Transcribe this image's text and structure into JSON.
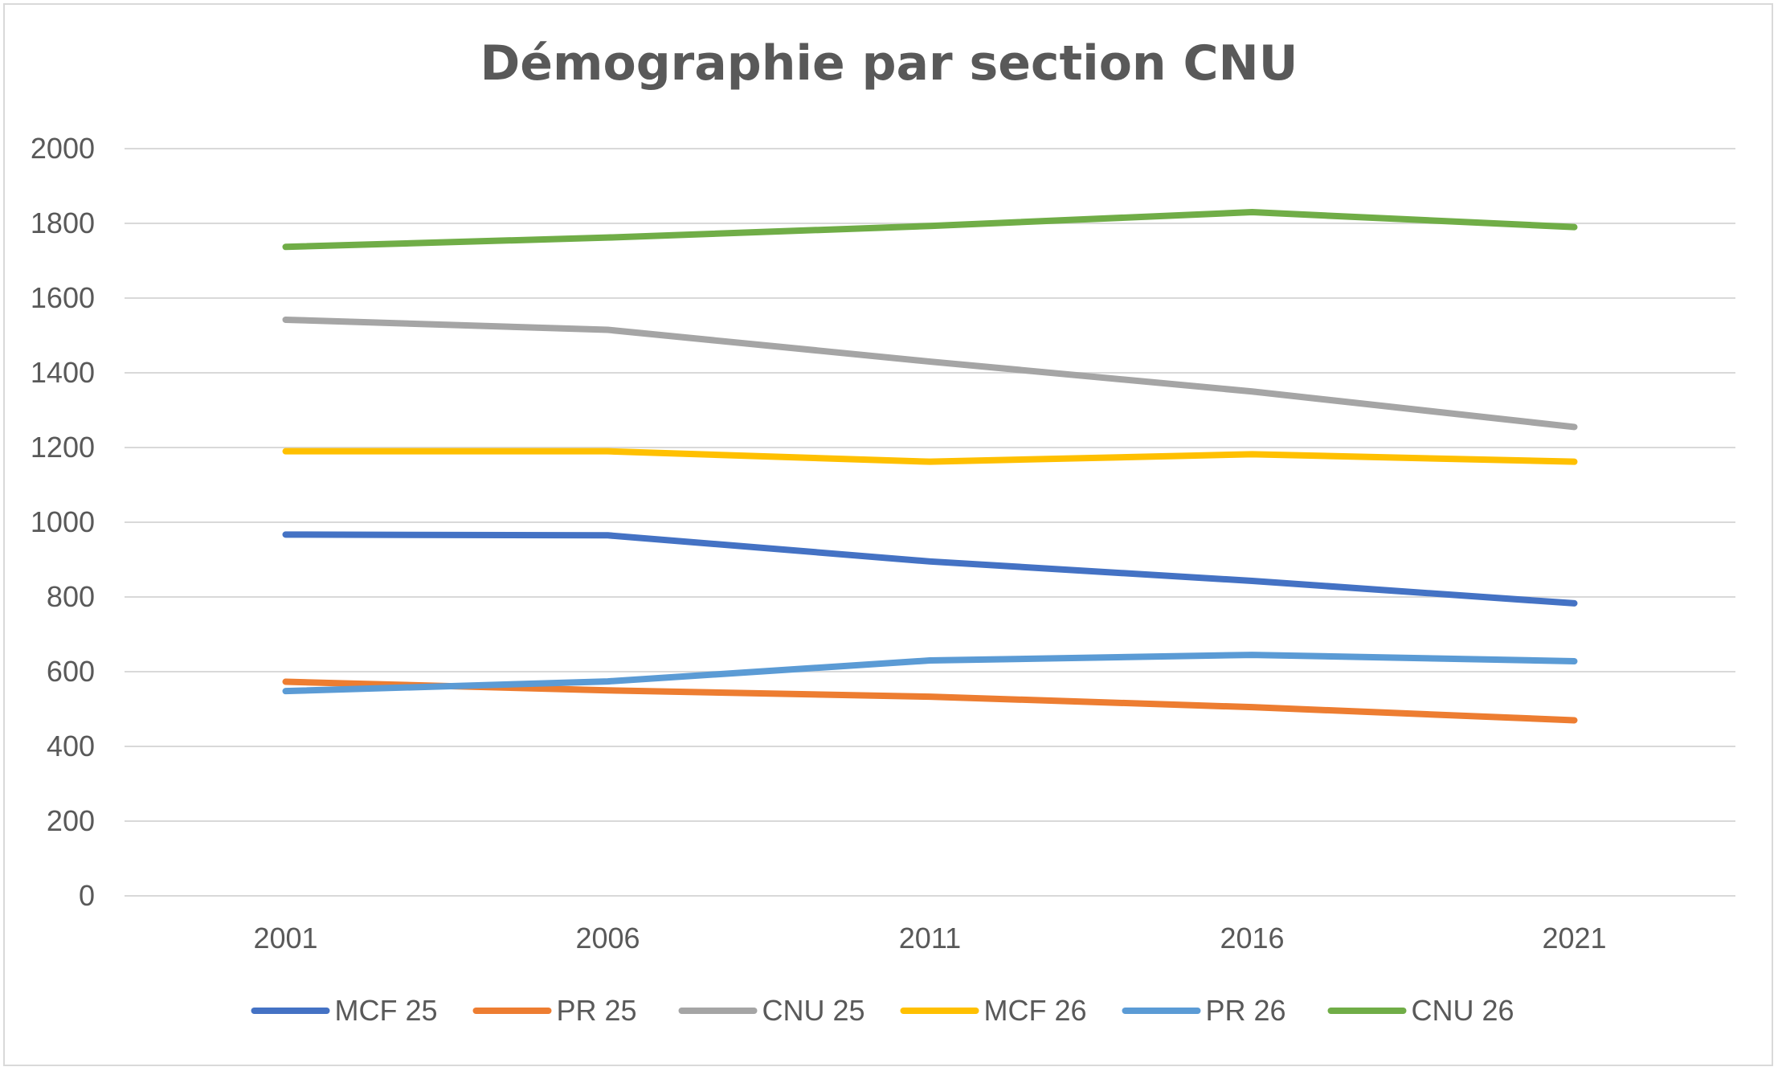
{
  "chart_data": {
    "type": "line",
    "title": "Démographie par section CNU",
    "xlabel": "",
    "ylabel": "",
    "categories": [
      "2001",
      "2006",
      "2011",
      "2016",
      "2021"
    ],
    "ylim": [
      0,
      2000
    ],
    "yticks": [
      0,
      200,
      400,
      600,
      800,
      1000,
      1200,
      1400,
      1600,
      1800,
      2000
    ],
    "grid": true,
    "legend": "bottom",
    "series": [
      {
        "name": "MCF 25",
        "color": "#4472c4",
        "values": [
          967,
          965,
          895,
          843,
          783
        ]
      },
      {
        "name": "PR 25",
        "color": "#ed7d31",
        "values": [
          573,
          550,
          533,
          505,
          470
        ]
      },
      {
        "name": "CNU 25",
        "color": "#a5a5a5",
        "values": [
          1542,
          1515,
          1430,
          1350,
          1255
        ]
      },
      {
        "name": "MCF 26",
        "color": "#ffc000",
        "values": [
          1190,
          1190,
          1162,
          1182,
          1162
        ]
      },
      {
        "name": "PR 26",
        "color": "#5b9bd5",
        "values": [
          548,
          574,
          630,
          645,
          628
        ]
      },
      {
        "name": "CNU 26",
        "color": "#70ad47",
        "values": [
          1737,
          1762,
          1793,
          1830,
          1790
        ]
      }
    ]
  }
}
